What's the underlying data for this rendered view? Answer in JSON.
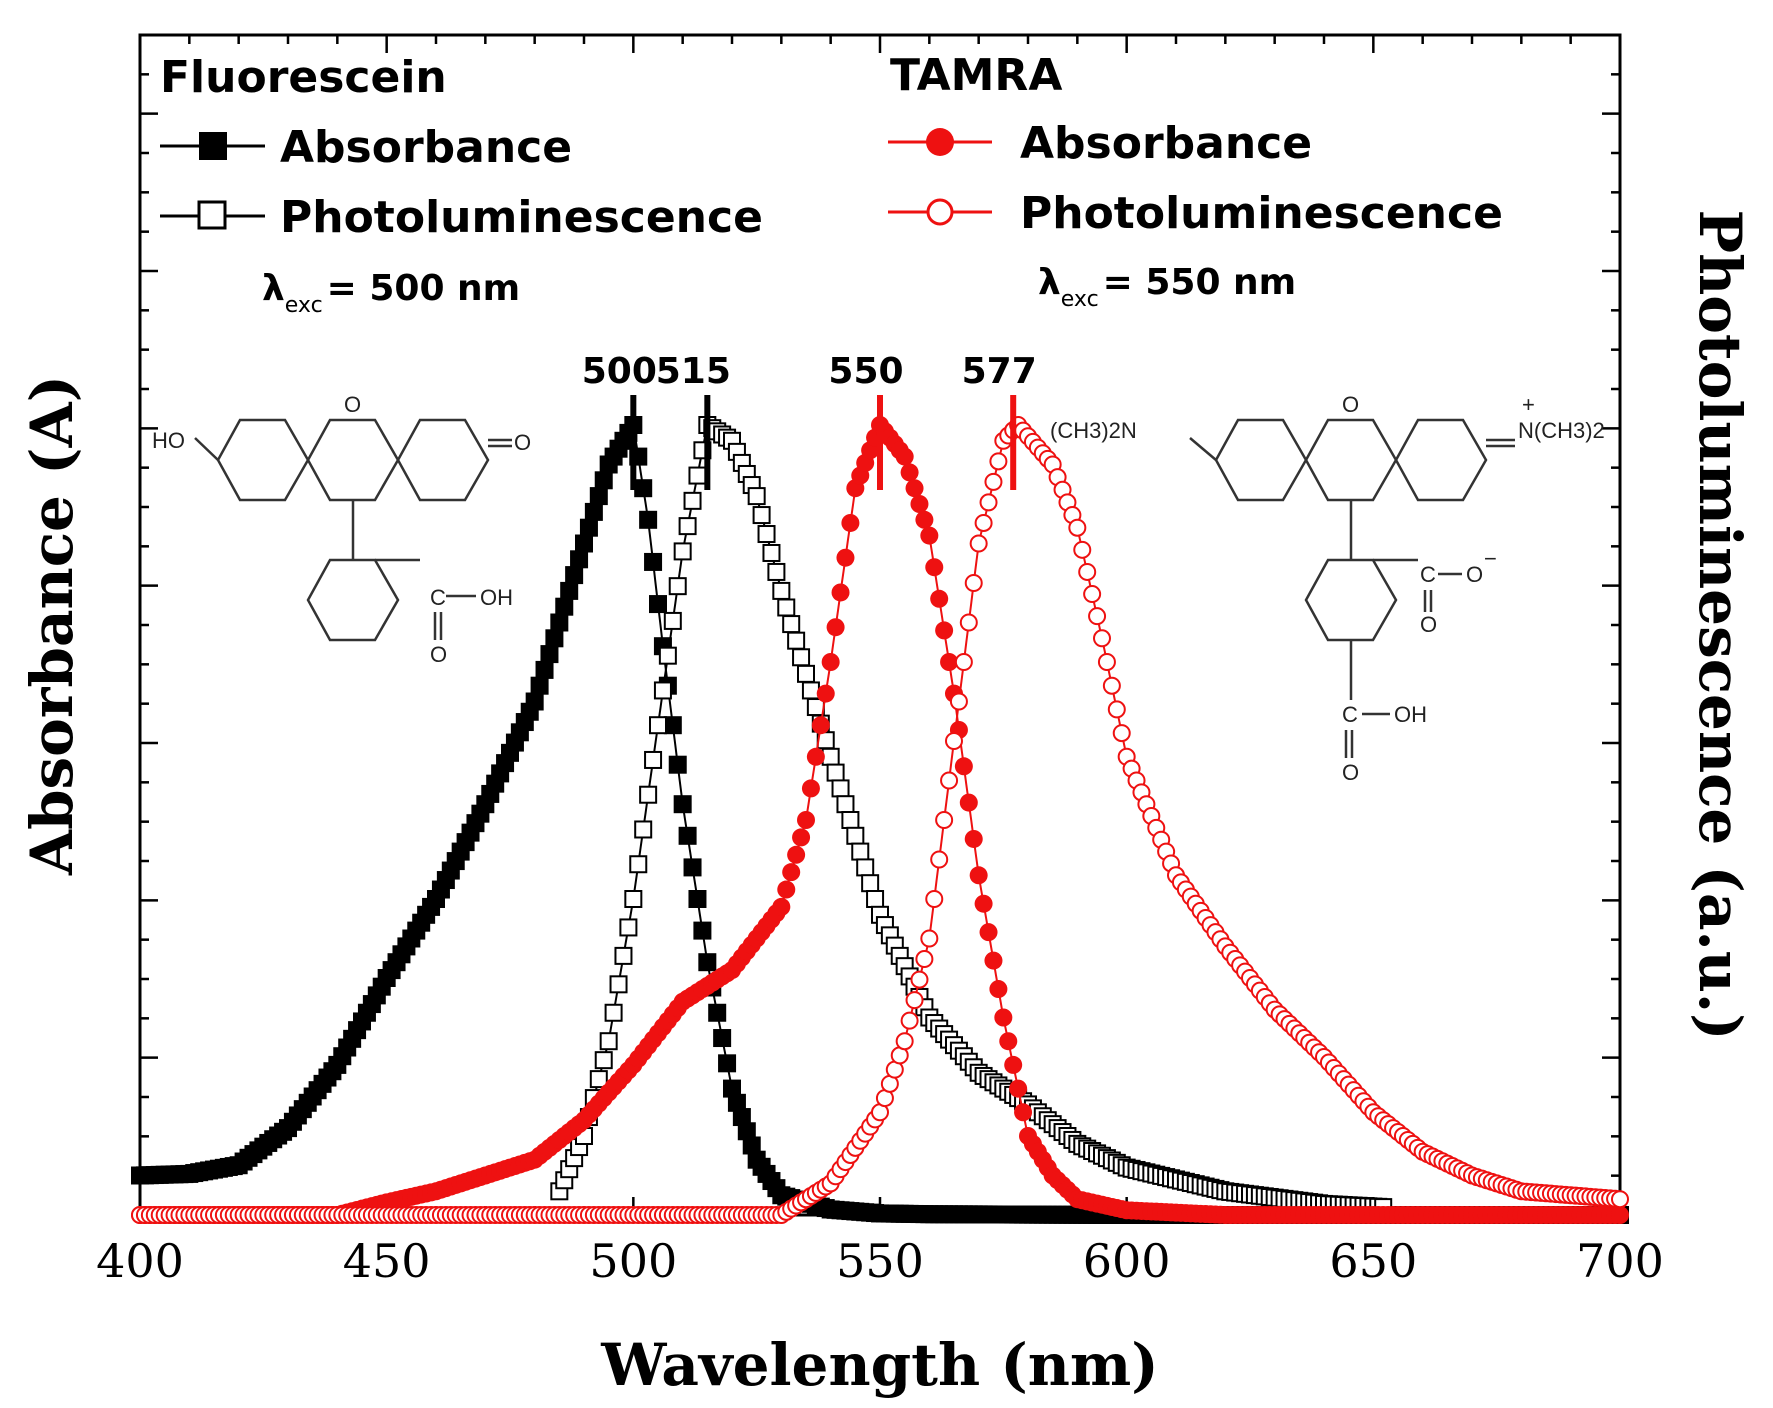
{
  "chart_data": {
    "type": "scatter",
    "xlabel": "Wavelength (nm)",
    "ylabel_left": "Absorbance (A)",
    "ylabel_right": "Photoluminescence (a.u.)",
    "xlim": [
      400,
      700
    ],
    "ylim": [
      0,
      1.0
    ],
    "x_ticks": [
      "400",
      "450",
      "500",
      "550",
      "600",
      "650",
      "700"
    ],
    "groups": [
      {
        "name": "Fluorescein",
        "color": "#000000",
        "excitation_symbol": "λ",
        "excitation_subscript": "exc",
        "excitation_value": "= 500 nm",
        "series": [
          {
            "name": "Absorbance",
            "marker": "square-filled",
            "points": [
              [
                400,
                0.05
              ],
              [
                410,
                0.052
              ],
              [
                420,
                0.063
              ],
              [
                430,
                0.11
              ],
              [
                440,
                0.19
              ],
              [
                450,
                0.3
              ],
              [
                460,
                0.4
              ],
              [
                470,
                0.52
              ],
              [
                480,
                0.65
              ],
              [
                490,
                0.85
              ],
              [
                495,
                0.95
              ],
              [
                500,
                1.0
              ],
              [
                503,
                0.88
              ],
              [
                506,
                0.72
              ],
              [
                510,
                0.52
              ],
              [
                515,
                0.32
              ],
              [
                520,
                0.16
              ],
              [
                525,
                0.07
              ],
              [
                530,
                0.025
              ],
              [
                540,
                0.007
              ],
              [
                550,
                0.002
              ],
              [
                560,
                0.001
              ],
              [
                600,
                0.0
              ],
              [
                650,
                0.0
              ],
              [
                700,
                0.0
              ]
            ]
          },
          {
            "name": "Photoluminescence",
            "marker": "square-open",
            "points": [
              [
                485,
                0.03
              ],
              [
                490,
                0.1
              ],
              [
                495,
                0.22
              ],
              [
                500,
                0.4
              ],
              [
                505,
                0.62
              ],
              [
                510,
                0.84
              ],
              [
                515,
                1.0
              ],
              [
                520,
                0.98
              ],
              [
                525,
                0.91
              ],
              [
                530,
                0.79
              ],
              [
                540,
                0.58
              ],
              [
                550,
                0.38
              ],
              [
                560,
                0.25
              ],
              [
                570,
                0.18
              ],
              [
                580,
                0.14
              ],
              [
                590,
                0.09
              ],
              [
                600,
                0.06
              ],
              [
                620,
                0.03
              ],
              [
                640,
                0.014
              ],
              [
                652,
                0.01
              ]
            ]
          }
        ]
      },
      {
        "name": "TAMRA",
        "color": "#ee1111",
        "excitation_symbol": "λ",
        "excitation_subscript": "exc",
        "excitation_value": "= 550 nm",
        "series": [
          {
            "name": "Absorbance",
            "marker": "circle-filled",
            "points": [
              [
                400,
                0.0
              ],
              [
                440,
                0.0
              ],
              [
                450,
                0.016
              ],
              [
                460,
                0.03
              ],
              [
                470,
                0.05
              ],
              [
                480,
                0.07
              ],
              [
                490,
                0.12
              ],
              [
                500,
                0.19
              ],
              [
                510,
                0.27
              ],
              [
                520,
                0.31
              ],
              [
                530,
                0.39
              ],
              [
                535,
                0.5
              ],
              [
                540,
                0.7
              ],
              [
                545,
                0.92
              ],
              [
                550,
                1.0
              ],
              [
                555,
                0.96
              ],
              [
                560,
                0.86
              ],
              [
                565,
                0.66
              ],
              [
                570,
                0.43
              ],
              [
                575,
                0.25
              ],
              [
                580,
                0.1
              ],
              [
                585,
                0.05
              ],
              [
                590,
                0.02
              ],
              [
                600,
                0.006
              ],
              [
                620,
                0.0
              ],
              [
                700,
                0.0
              ]
            ]
          },
          {
            "name": "Photoluminescence",
            "marker": "circle-open",
            "points": [
              [
                400,
                0.0
              ],
              [
                530,
                0.0
              ],
              [
                540,
                0.04
              ],
              [
                550,
                0.13
              ],
              [
                555,
                0.22
              ],
              [
                560,
                0.35
              ],
              [
                565,
                0.6
              ],
              [
                570,
                0.85
              ],
              [
                575,
                0.98
              ],
              [
                578,
                1.0
              ],
              [
                585,
                0.95
              ],
              [
                590,
                0.87
              ],
              [
                595,
                0.73
              ],
              [
                600,
                0.58
              ],
              [
                610,
                0.43
              ],
              [
                620,
                0.34
              ],
              [
                630,
                0.26
              ],
              [
                640,
                0.2
              ],
              [
                650,
                0.13
              ],
              [
                660,
                0.08
              ],
              [
                670,
                0.05
              ],
              [
                680,
                0.03
              ],
              [
                700,
                0.02
              ]
            ]
          }
        ]
      }
    ],
    "peak_labels": [
      {
        "x": 500,
        "label": "500",
        "color": "#000000"
      },
      {
        "x": 515,
        "label": "515",
        "color": "#000000"
      },
      {
        "x": 550,
        "label": "550",
        "color": "#000000"
      },
      {
        "x": 577,
        "label": "577",
        "color": "#000000"
      }
    ]
  },
  "molecules": {
    "fluorescein": {
      "ho": "HO",
      "o_ring": "O",
      "o_keto": "O",
      "cooh_c": "C",
      "cooh_oh": "OH",
      "cooh_o": "O"
    },
    "tamra": {
      "nme2_left": "(CH3)2N",
      "o_ring": "O",
      "nme2_right": "N(CH3)2",
      "plus": "+",
      "coo_c": "C",
      "coo_o_minus": "O",
      "minus": "−",
      "coo_o": "O",
      "cooh_c": "C",
      "cooh_oh": "OH",
      "cooh_o": "O"
    }
  }
}
